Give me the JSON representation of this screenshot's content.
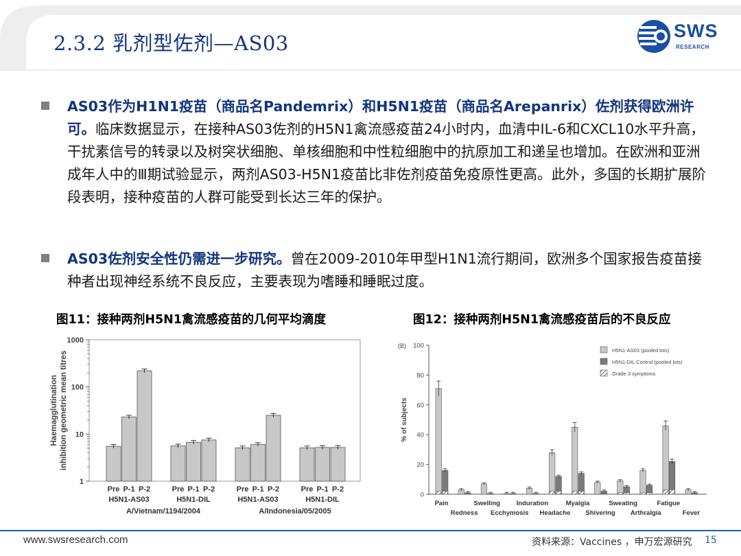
{
  "header": {
    "title": "2.3.2 乳剂型佐剂—AS03",
    "logo_text": "SWS",
    "logo_sub": "RESEARCH"
  },
  "bullets": [
    {
      "highlight": "AS03作为H1N1疫苗（商品名Pandemrix）和H5N1疫苗（商品名Arepanrix）佐剂获得欧洲许可。",
      "body": "临床数据显示，在接种AS03佐剂的H5N1禽流感疫苗24小时内，血清中IL-6和CXCL10水平升高，干扰素信号的转录以及树突状细胞、单核细胞和中性粒细胞中的抗原加工和递呈也增加。在欧洲和亚洲成年人中的Ⅲ期试验显示，两剂AS03-H5N1疫苗比非佐剂疫苗免疫原性更高。此外，多国的长期扩展阶段表明，接种疫苗的人群可能受到长达三年的保护。"
    },
    {
      "highlight": "AS03佐剂安全性仍需进一步研究。",
      "body": "曾在2009-2010年甲型H1N1流行期间，欧洲多个国家报告疫苗接种者出现神经系统不良反应，主要表现为嗜睡和睡眠过度。"
    }
  ],
  "figures": {
    "fig11_title": "图11：接种两剂H5N1禽流感疫苗的几何平均滴度",
    "fig12_title": "图12：接种两剂H5N1禽流感疫苗后的不良反应"
  },
  "chart_data": [
    {
      "type": "bar",
      "ylabel": "Haemagglutination inhibition geometric mean titres",
      "yscale": "log",
      "ylim": [
        1,
        1000
      ],
      "ytick_labels": [
        "1",
        "10",
        "100",
        "1000"
      ],
      "groups": [
        {
          "name": "H5N1-AS03",
          "strain": "A/Vietnam/1194/2004",
          "categories": [
            "Pre",
            "P-1",
            "P-2"
          ],
          "values": [
            5.5,
            23,
            220
          ]
        },
        {
          "name": "H5N1-DIL",
          "strain": "A/Vietnam/1194/2004",
          "categories": [
            "Pre",
            "P-1",
            "P-2"
          ],
          "values": [
            5.6,
            6.7,
            7.5
          ]
        },
        {
          "name": "H5N1-AS03",
          "strain": "A/Indonesia/05/2005",
          "categories": [
            "Pre",
            "P-1",
            "P-2"
          ],
          "values": [
            5.1,
            6.0,
            25
          ]
        },
        {
          "name": "H5N1-DIL",
          "strain": "A/Indonesia/05/2005",
          "categories": [
            "Pre",
            "P-1",
            "P-2"
          ],
          "values": [
            5.1,
            5.2,
            5.2
          ]
        }
      ],
      "strains": [
        "A/Vietnam/1194/2004",
        "A/Indonesia/05/2005"
      ],
      "colors": {
        "bar": "#c8c8c8",
        "stroke": "#555555"
      }
    },
    {
      "type": "bar",
      "panel_label": "(B)",
      "ylabel": "% of subjects",
      "ylim": [
        0,
        100
      ],
      "yticks": [
        0,
        20,
        40,
        60,
        80,
        100
      ],
      "categories": [
        "Pain",
        "Redness",
        "Swelling",
        "Ecchymosis",
        "Induration",
        "Headache",
        "Myalgia",
        "Shivering",
        "Sweating",
        "Arthralgia",
        "Fatigue",
        "Fever"
      ],
      "series": [
        {
          "name": "H5N1-AS03 (pooled lots)",
          "values": [
            71,
            3,
            7,
            0.5,
            4,
            28,
            45,
            8,
            9,
            16,
            46,
            3
          ],
          "color": "#c8c8c8"
        },
        {
          "name": "H5N1-DIL Control (pooled lots)",
          "values": [
            16,
            1,
            0.5,
            0.5,
            0.5,
            12,
            14,
            2,
            5,
            6,
            22,
            1
          ],
          "color": "#7a7a7a"
        },
        {
          "name": "Grade 3 symptoms",
          "values": [
            2,
            0,
            0,
            0,
            0,
            2,
            2,
            0,
            1,
            1,
            3,
            0
          ],
          "color": "hatch"
        }
      ],
      "legend": "top-right"
    }
  ],
  "footer": {
    "url": "www.swsresearch.com",
    "source": "资料来源：Vaccines ，申万宏源研究",
    "page": "15"
  }
}
